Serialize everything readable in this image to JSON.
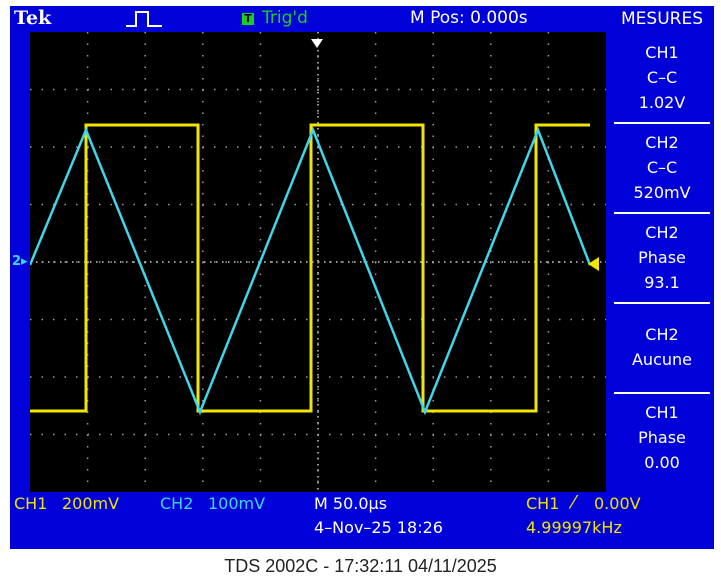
{
  "topbar": {
    "brand": "Tek",
    "trigger_status_icon": "T",
    "trigger_status": "Trig'd",
    "main_position": "M Pos: 0.000s"
  },
  "measurements": {
    "title": "MESURES",
    "items": [
      {
        "line1": "CH1",
        "line2": "C–C",
        "line3": "1.02V"
      },
      {
        "line1": "CH2",
        "line2": "C–C",
        "line3": "520mV"
      },
      {
        "line1": "CH2",
        "line2": "Phase",
        "line3": "93.1"
      },
      {
        "line1": "CH2",
        "line2": "Aucune",
        "line3": ""
      },
      {
        "line1": "CH1",
        "line2": "Phase",
        "line3": "0.00"
      }
    ]
  },
  "status": {
    "ch1_label": "CH1",
    "ch1_scale": "200mV",
    "ch2_label": "CH2",
    "ch2_scale": "100mV",
    "timebase": "M 50.0µs",
    "datetime": "4–Nov–25 18:26",
    "trigger_source": "CH1",
    "trigger_slope": "⁄",
    "trigger_level": "0.00V",
    "frequency": "4.99997kHz"
  },
  "ground_marker": "2",
  "footer": "TDS 2002C - 17:32:11   04/11/2025",
  "colors": {
    "screen_bg": "#0000d8",
    "graticule_bg": "#000000",
    "ch1": "#f2e600",
    "ch2": "#3fd6e8",
    "trig": "#19d020"
  },
  "icons": [
    "pulse-trigger-icon",
    "trigger-position-marker-icon",
    "ch2-ground-marker-icon",
    "trigger-level-marker-icon"
  ]
}
